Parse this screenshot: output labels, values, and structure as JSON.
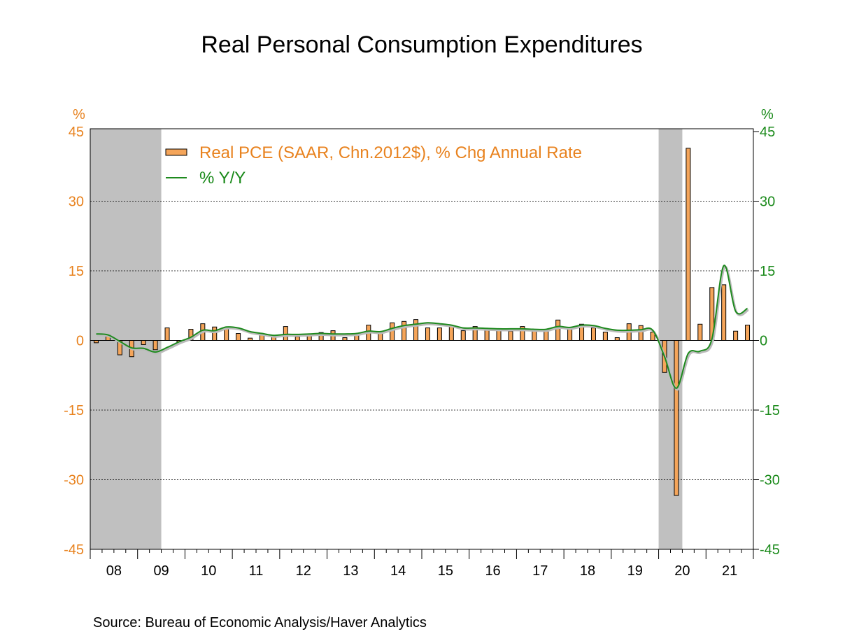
{
  "chart_data": {
    "type": "bar",
    "title": "Real Personal Consumption Expenditures",
    "source": "Source:  Bureau of Economic Analysis/Haver Analytics",
    "left_unit": "%",
    "right_unit": "%",
    "ylim": [
      -45,
      45
    ],
    "yticks": [
      45,
      30,
      15,
      0,
      -15,
      -30,
      -45
    ],
    "grid": "horizontal dotted at ±15, ±30",
    "x_tick_labels": [
      "08",
      "09",
      "10",
      "11",
      "12",
      "13",
      "14",
      "15",
      "16",
      "17",
      "18",
      "19",
      "20",
      "21"
    ],
    "first_quarter": "2008 Q1",
    "recession_shading": [
      [
        "2008 Q1",
        "2009 Q2"
      ],
      [
        "2020 Q1",
        "2020 Q2"
      ]
    ],
    "legend_placement": "top-left",
    "colors": {
      "bars": "#F5A55A",
      "line": "#1E8A1E",
      "left_axis": "#E8821E",
      "right_axis": "#1A8A1A",
      "recession": "#C0C0C0"
    },
    "series": [
      {
        "name": "Real PCE (SAAR, Chn.2012$), % Chg Annual Rate",
        "type": "bar",
        "axis": "left",
        "values": [
          -0.5,
          1.1,
          -3.1,
          -3.5,
          -0.9,
          -2.0,
          2.7,
          -0.3,
          2.4,
          3.6,
          2.9,
          2.6,
          1.5,
          0.5,
          1.2,
          0.8,
          3.0,
          0.8,
          1.0,
          1.7,
          2.1,
          0.6,
          1.4,
          3.3,
          1.5,
          3.8,
          4.1,
          4.5,
          2.7,
          2.7,
          3.2,
          2.1,
          3.0,
          2.2,
          2.3,
          2.0,
          3.0,
          2.0,
          2.2,
          4.4,
          2.4,
          3.5,
          2.7,
          1.8,
          0.6,
          3.6,
          3.2,
          1.8,
          -6.9,
          -33.4,
          41.4,
          3.5,
          11.4,
          12.0,
          2.0,
          3.3
        ]
      },
      {
        "name": "% Y/Y",
        "type": "line",
        "axis": "right",
        "values": [
          1.4,
          1.2,
          -0.2,
          -1.6,
          -1.7,
          -2.5,
          -1.5,
          -0.3,
          0.7,
          2.2,
          2.1,
          2.9,
          2.7,
          1.9,
          1.5,
          1.1,
          1.3,
          1.3,
          1.4,
          1.5,
          1.4,
          1.4,
          1.5,
          2.0,
          1.9,
          2.6,
          3.2,
          3.5,
          3.8,
          3.6,
          3.3,
          2.7,
          2.7,
          2.6,
          2.5,
          2.5,
          2.5,
          2.4,
          2.4,
          3.0,
          2.8,
          3.3,
          3.2,
          2.6,
          2.2,
          2.2,
          2.3,
          2.2,
          -3.5,
          -10.3,
          -2.8,
          -2.3,
          0.3,
          16.1,
          6.3,
          6.9
        ]
      }
    ]
  }
}
